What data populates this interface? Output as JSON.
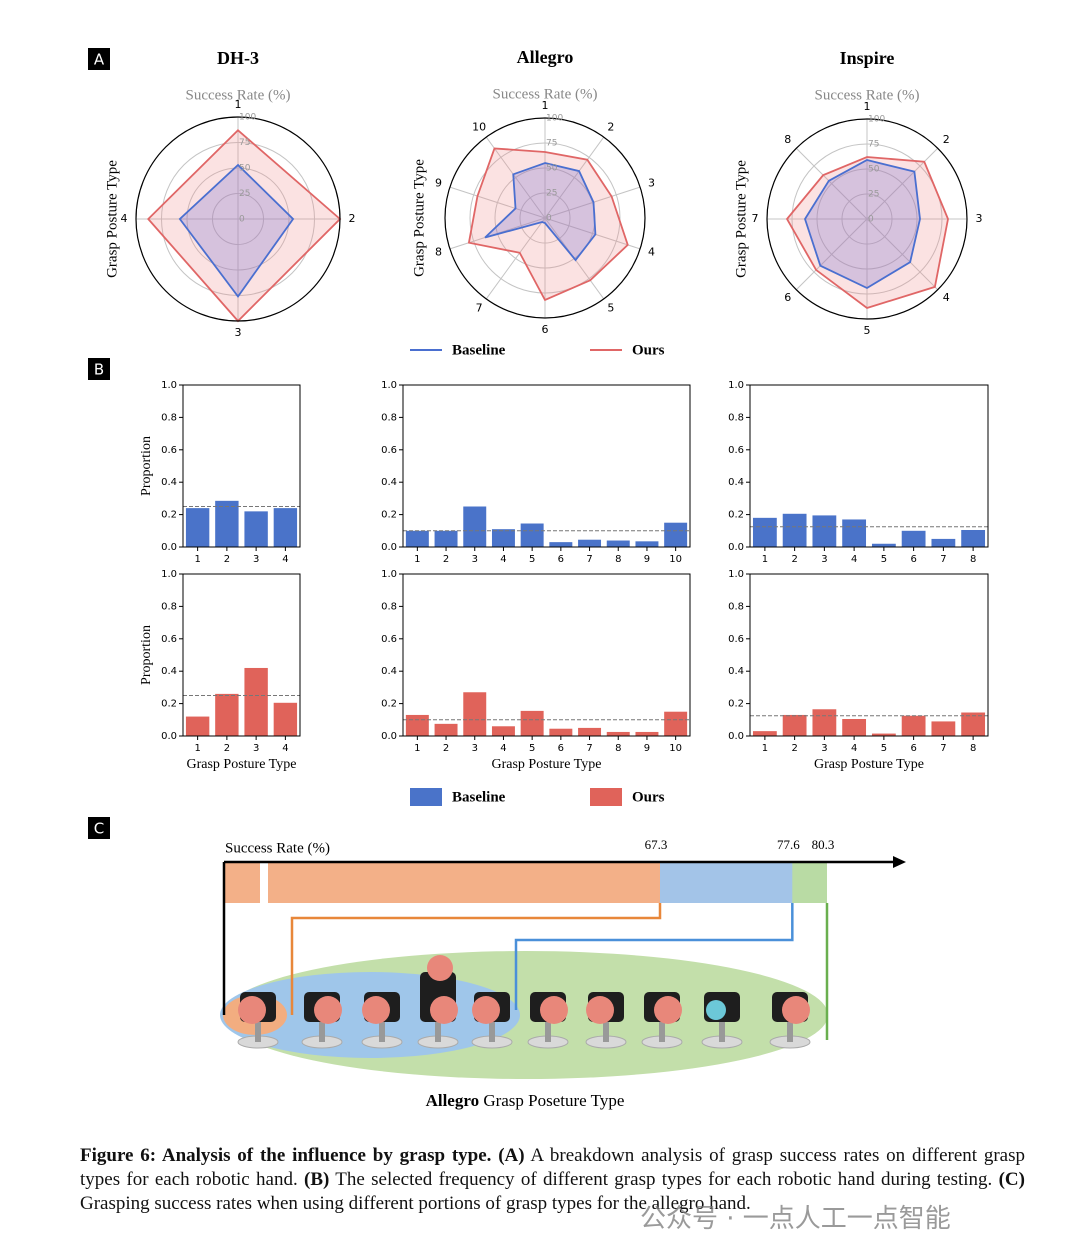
{
  "panel_labels": [
    "A",
    "B",
    "C"
  ],
  "chart_data": [
    {
      "type": "radar",
      "title": "DH-3",
      "subtitle": "Success Rate (%)",
      "ylabel": "Grasp Posture Type",
      "categories": [
        "1",
        "2",
        "3",
        "4"
      ],
      "ylim": [
        0,
        100
      ],
      "yticks": [
        0,
        25,
        50,
        75,
        100
      ],
      "series": [
        {
          "name": "Baseline",
          "color": "#4a6fd0",
          "fill": "rgba(120,110,210,0.28)",
          "values": [
            53,
            54,
            76,
            57
          ]
        },
        {
          "name": "Ours",
          "color": "#e06666",
          "fill": "rgba(240,140,140,0.25)",
          "values": [
            87,
            100,
            100,
            88
          ]
        }
      ]
    },
    {
      "type": "radar",
      "title": "Allegro",
      "subtitle": "Success Rate (%)",
      "ylabel": "Grasp Posture Type",
      "categories": [
        "1",
        "2",
        "3",
        "4",
        "5",
        "6",
        "7",
        "8",
        "9",
        "10"
      ],
      "ylim": [
        0,
        100
      ],
      "yticks": [
        0,
        25,
        50,
        75,
        100
      ],
      "series": [
        {
          "name": "Baseline",
          "color": "#4a6fd0",
          "fill": "rgba(120,110,210,0.28)",
          "values": [
            55,
            58,
            51,
            53,
            52,
            5,
            5,
            63,
            31,
            54
          ]
        },
        {
          "name": "Ours",
          "color": "#e06666",
          "fill": "rgba(240,140,140,0.25)",
          "values": [
            66,
            72,
            70,
            87,
            77,
            82,
            43,
            80,
            71,
            86
          ]
        }
      ]
    },
    {
      "type": "radar",
      "title": "Inspire",
      "subtitle": "Success Rate (%)",
      "ylabel": "Grasp Posture Type",
      "categories": [
        "1",
        "2",
        "3",
        "4",
        "5",
        "6",
        "7",
        "8"
      ],
      "ylim": [
        0,
        100
      ],
      "yticks": [
        0,
        25,
        50,
        75,
        100
      ],
      "series": [
        {
          "name": "Baseline",
          "color": "#4a6fd0",
          "fill": "rgba(120,110,210,0.28)",
          "values": [
            59,
            67,
            53,
            61,
            69,
            66,
            62,
            54
          ]
        },
        {
          "name": "Ours",
          "color": "#e06666",
          "fill": "rgba(240,140,140,0.25)",
          "values": [
            62,
            81,
            81,
            96,
            89,
            72,
            80,
            62
          ]
        }
      ]
    },
    {
      "type": "bar",
      "ylabel": "Proportion",
      "categories": [
        "1",
        "2",
        "3",
        "4"
      ],
      "ylim": [
        0,
        1
      ],
      "yticks": [
        {
          "value": 0,
          "label": "0.0"
        },
        0.2,
        0.4,
        0.6,
        0.8,
        {
          "value": 1,
          "label": "1.0"
        }
      ],
      "reference": 0.25,
      "series": [
        {
          "name": "Baseline",
          "color": "#4a73c9",
          "values": [
            0.24,
            0.285,
            0.22,
            0.24
          ]
        }
      ]
    },
    {
      "type": "bar",
      "categories": [
        "1",
        "2",
        "3",
        "4",
        "5",
        "6",
        "7",
        "8",
        "9",
        "10"
      ],
      "ylim": [
        0,
        1
      ],
      "yticks": [
        {
          "value": 0,
          "label": "0.0"
        },
        0.2,
        0.4,
        0.6,
        0.8,
        {
          "value": 1,
          "label": "1.0"
        }
      ],
      "reference": 0.1,
      "series": [
        {
          "name": "Baseline",
          "color": "#4a73c9",
          "values": [
            0.1,
            0.1,
            0.25,
            0.11,
            0.145,
            0.03,
            0.045,
            0.04,
            0.035,
            0.15
          ]
        }
      ]
    },
    {
      "type": "bar",
      "categories": [
        "1",
        "2",
        "3",
        "4",
        "5",
        "6",
        "7",
        "8"
      ],
      "ylim": [
        0,
        1
      ],
      "yticks": [
        {
          "value": 0,
          "label": "0.0"
        },
        0.2,
        0.4,
        0.6,
        0.8,
        {
          "value": 1,
          "label": "1.0"
        }
      ],
      "reference": 0.125,
      "series": [
        {
          "name": "Baseline",
          "color": "#4a73c9",
          "values": [
            0.18,
            0.205,
            0.195,
            0.17,
            0.02,
            0.1,
            0.05,
            0.105
          ]
        }
      ]
    },
    {
      "type": "bar",
      "ylabel": "Proportion",
      "xlabel": "Grasp Posture Type",
      "categories": [
        "1",
        "2",
        "3",
        "4"
      ],
      "ylim": [
        0,
        1
      ],
      "yticks": [
        {
          "value": 0,
          "label": "0.0"
        },
        0.2,
        0.4,
        0.6,
        0.8,
        {
          "value": 1,
          "label": "1.0"
        }
      ],
      "reference": 0.25,
      "series": [
        {
          "name": "Ours",
          "color": "#e0635a",
          "values": [
            0.12,
            0.26,
            0.42,
            0.205
          ]
        }
      ]
    },
    {
      "type": "bar",
      "xlabel": "Grasp Posture Type",
      "categories": [
        "1",
        "2",
        "3",
        "4",
        "5",
        "6",
        "7",
        "8",
        "9",
        "10"
      ],
      "ylim": [
        0,
        1
      ],
      "yticks": [
        {
          "value": 0,
          "label": "0.0"
        },
        0.2,
        0.4,
        0.6,
        0.8,
        {
          "value": 1,
          "label": "1.0"
        }
      ],
      "reference": 0.1,
      "series": [
        {
          "name": "Ours",
          "color": "#e0635a",
          "values": [
            0.13,
            0.075,
            0.27,
            0.06,
            0.155,
            0.045,
            0.05,
            0.025,
            0.025,
            0.15
          ]
        }
      ]
    },
    {
      "type": "bar",
      "xlabel": "Grasp Posture Type",
      "categories": [
        "1",
        "2",
        "3",
        "4",
        "5",
        "6",
        "7",
        "8"
      ],
      "ylim": [
        0,
        1
      ],
      "yticks": [
        {
          "value": 0,
          "label": "0.0"
        },
        0.2,
        0.4,
        0.6,
        0.8,
        {
          "value": 1,
          "label": "1.0"
        }
      ],
      "reference": 0.125,
      "series": [
        {
          "name": "Ours",
          "color": "#e0635a",
          "values": [
            0.03,
            0.13,
            0.165,
            0.105,
            0.015,
            0.125,
            0.09,
            0.145
          ]
        }
      ]
    },
    {
      "type": "strip",
      "xlabel": "Success Rate (%)",
      "values": [
        67.3,
        77.6,
        80.3
      ],
      "colors": [
        "#f3b088",
        "#a3c4e8",
        "#b9dba4"
      ],
      "line_colors": [
        "#e8873a",
        "#4a90d9",
        "#6aaf4f"
      ],
      "caption_label": {
        "bold": "Allegro",
        "text": "Grasp Poseture Type"
      }
    }
  ],
  "caption": {
    "figure": "Figure 6: Analysis of the influence by grasp type.",
    "parts": [
      {
        "label": "(A)",
        "text": "A breakdown analysis of grasp success rates on different grasp types for each robotic hand."
      },
      {
        "label": "(B)",
        "text": "The selected frequency of different grasp types for each robotic hand during testing."
      },
      {
        "label": "(C)",
        "text": "Grasping success rates when using different portions of grasp types for the allegro hand."
      }
    ]
  },
  "watermark": "公众号 · 一点人工一点智能"
}
